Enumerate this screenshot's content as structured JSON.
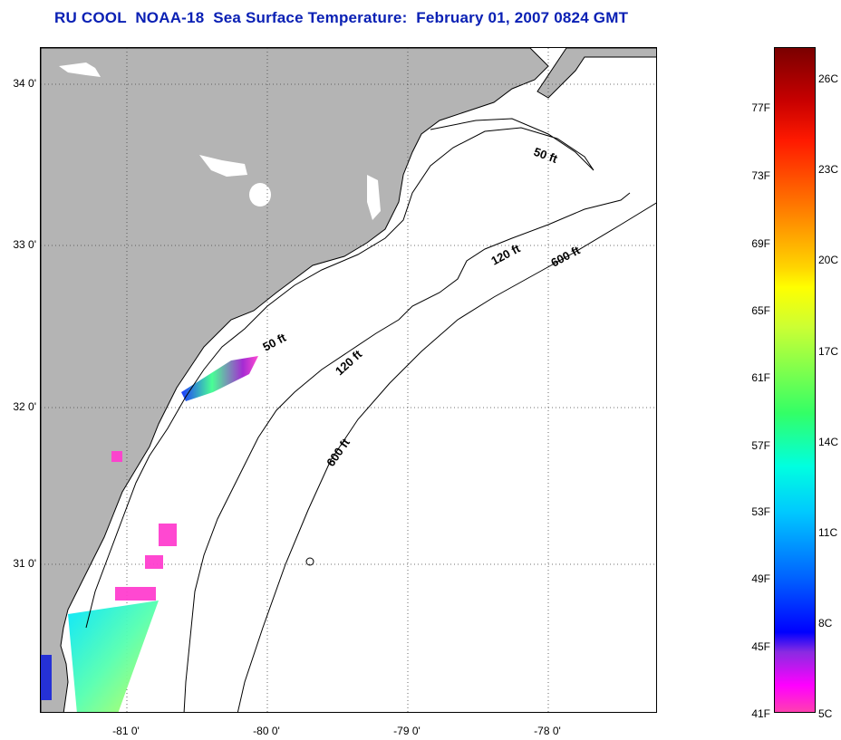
{
  "title": "RU COOL  NOAA-18  Sea Surface Temperature:  February 01, 2007 0824 GMT",
  "map": {
    "lat_labels": [
      "34 0'",
      "33 0'",
      "32 0'",
      "31 0'"
    ],
    "lon_labels": [
      "-81 0'",
      "-80 0'",
      "-79 0'",
      "-78 0'"
    ],
    "contours": [
      "50 ft",
      "120 ft",
      "600 ft",
      "50 ft",
      "120 ft",
      "600 ft"
    ],
    "colors": {
      "land": "#b4b4b4",
      "ocean": "#ffffff",
      "title": "#0a20b4"
    }
  },
  "colorbar": {
    "f_labels": [
      "77F",
      "73F",
      "69F",
      "65F",
      "61F",
      "57F",
      "53F",
      "49F",
      "45F",
      "41F"
    ],
    "c_labels": [
      "26C",
      "23C",
      "20C",
      "17C",
      "14C",
      "11C",
      "8C",
      "5C"
    ]
  }
}
